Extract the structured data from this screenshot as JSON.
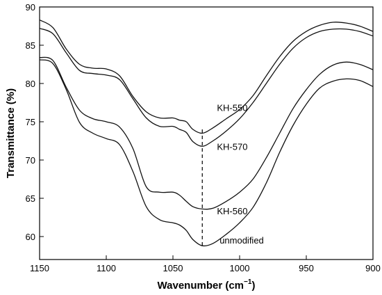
{
  "chart_data": {
    "type": "line",
    "xlabel": "Wavenumber (cm",
    "xlabel_sup": "−1",
    "xlabel_end": ")",
    "ylabel": "Transmittance (%)",
    "xlim": [
      1150,
      900
    ],
    "ylim": [
      57,
      90
    ],
    "x_ticks": [
      1150,
      1100,
      1050,
      1000,
      950,
      900
    ],
    "y_ticks": [
      60,
      65,
      70,
      75,
      80,
      85,
      90
    ],
    "reference_line": {
      "x": 1028,
      "y_from": 58.8,
      "y_to": 74.0,
      "style": "dashed"
    },
    "x": [
      1150,
      1140,
      1130,
      1120,
      1110,
      1100,
      1090,
      1080,
      1070,
      1060,
      1050,
      1045,
      1040,
      1035,
      1028,
      1020,
      1010,
      1000,
      990,
      980,
      970,
      960,
      950,
      940,
      930,
      920,
      910,
      900
    ],
    "series": [
      {
        "name": "KH-550",
        "values": [
          88.3,
          87.3,
          84.5,
          82.5,
          82.0,
          81.9,
          81.0,
          78.3,
          76.3,
          75.5,
          75.5,
          75.2,
          75.0,
          74.0,
          73.5,
          74.2,
          75.4,
          76.6,
          78.4,
          81.0,
          83.5,
          85.5,
          86.8,
          87.6,
          88.0,
          87.9,
          87.5,
          86.8
        ]
      },
      {
        "name": "KH-570",
        "values": [
          87.2,
          86.5,
          84.0,
          81.7,
          81.3,
          81.1,
          80.5,
          78.0,
          75.5,
          74.4,
          74.4,
          74.0,
          73.6,
          72.4,
          71.8,
          72.5,
          73.8,
          75.4,
          77.5,
          80.0,
          82.5,
          84.6,
          86.0,
          86.8,
          87.1,
          87.1,
          86.8,
          86.2
        ]
      },
      {
        "name": "KH-560",
        "values": [
          83.4,
          83.0,
          79.5,
          76.5,
          75.4,
          75.0,
          74.3,
          71.5,
          66.5,
          65.8,
          65.8,
          65.4,
          64.6,
          63.9,
          63.6,
          63.7,
          64.6,
          65.8,
          67.5,
          70.3,
          73.5,
          76.7,
          79.2,
          81.2,
          82.4,
          82.8,
          82.5,
          81.8
        ]
      },
      {
        "name": "unmodified",
        "values": [
          83.1,
          82.6,
          79.2,
          74.9,
          73.5,
          72.8,
          72.0,
          68.5,
          63.9,
          62.2,
          61.8,
          61.5,
          60.8,
          59.6,
          58.8,
          59.1,
          60.3,
          61.8,
          63.8,
          67.0,
          71.0,
          74.5,
          77.3,
          79.4,
          80.3,
          80.6,
          80.4,
          79.6
        ]
      }
    ],
    "label_anchors": [
      {
        "series": "KH-550",
        "x": 1017,
        "y": 76.4
      },
      {
        "series": "KH-570",
        "x": 1017,
        "y": 71.3
      },
      {
        "series": "KH-560",
        "x": 1017,
        "y": 62.9
      },
      {
        "series": "unmodified",
        "x": 1015,
        "y": 59.1
      }
    ]
  }
}
